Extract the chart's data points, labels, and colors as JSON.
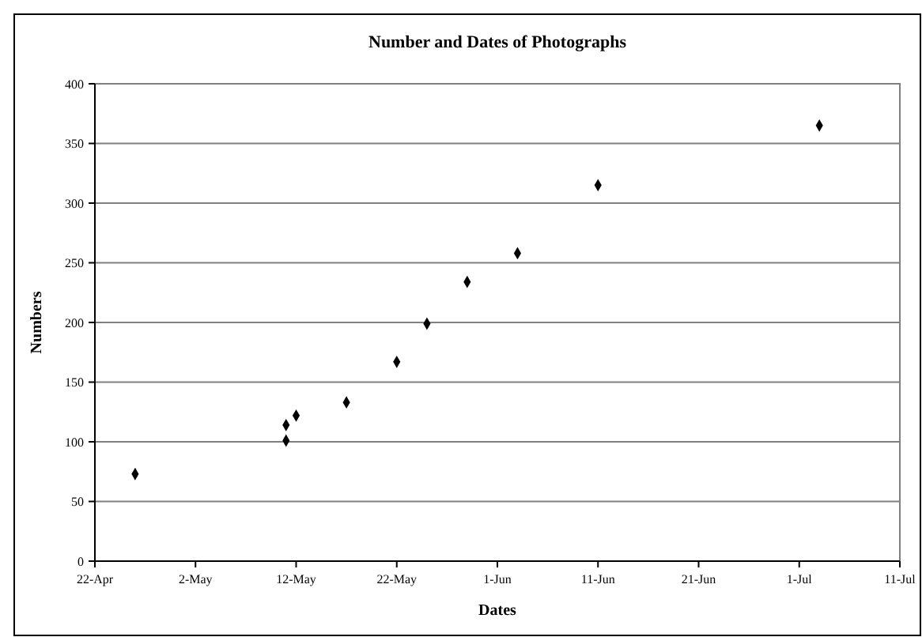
{
  "chart_data": {
    "type": "scatter",
    "title": "Number and Dates of Photographs",
    "xlabel": "Dates",
    "ylabel": "Numbers",
    "x": [
      "--04-26",
      "--05-11",
      "--05-11",
      "--05-12",
      "--05-17",
      "--05-22",
      "--05-25",
      "--05-29",
      "--06-03",
      "--06-11",
      "--07-03"
    ],
    "values": [
      73,
      101,
      114,
      122,
      133,
      167,
      199,
      234,
      258,
      315,
      365
    ],
    "color": "#000000",
    "marker": "diamond",
    "xlim": [
      "--04-22",
      "--07-11"
    ],
    "xticks": [
      {
        "value": "--04-22",
        "label": "22-Apr"
      },
      {
        "value": "--05-02",
        "label": "2-May"
      },
      {
        "value": "--05-12",
        "label": "12-May"
      },
      {
        "value": "--05-22",
        "label": "22-May"
      },
      {
        "value": "--06-01",
        "label": "1-Jun"
      },
      {
        "value": "--06-11",
        "label": "11-Jun"
      },
      {
        "value": "--06-21",
        "label": "21-Jun"
      },
      {
        "value": "--07-01",
        "label": "1-Jul"
      },
      {
        "value": "--07-11",
        "label": "11-Jul"
      }
    ],
    "ylim": [
      0,
      400
    ],
    "yticks": [
      0,
      50,
      100,
      150,
      200,
      250,
      300,
      350,
      400
    ],
    "grid": "y"
  }
}
